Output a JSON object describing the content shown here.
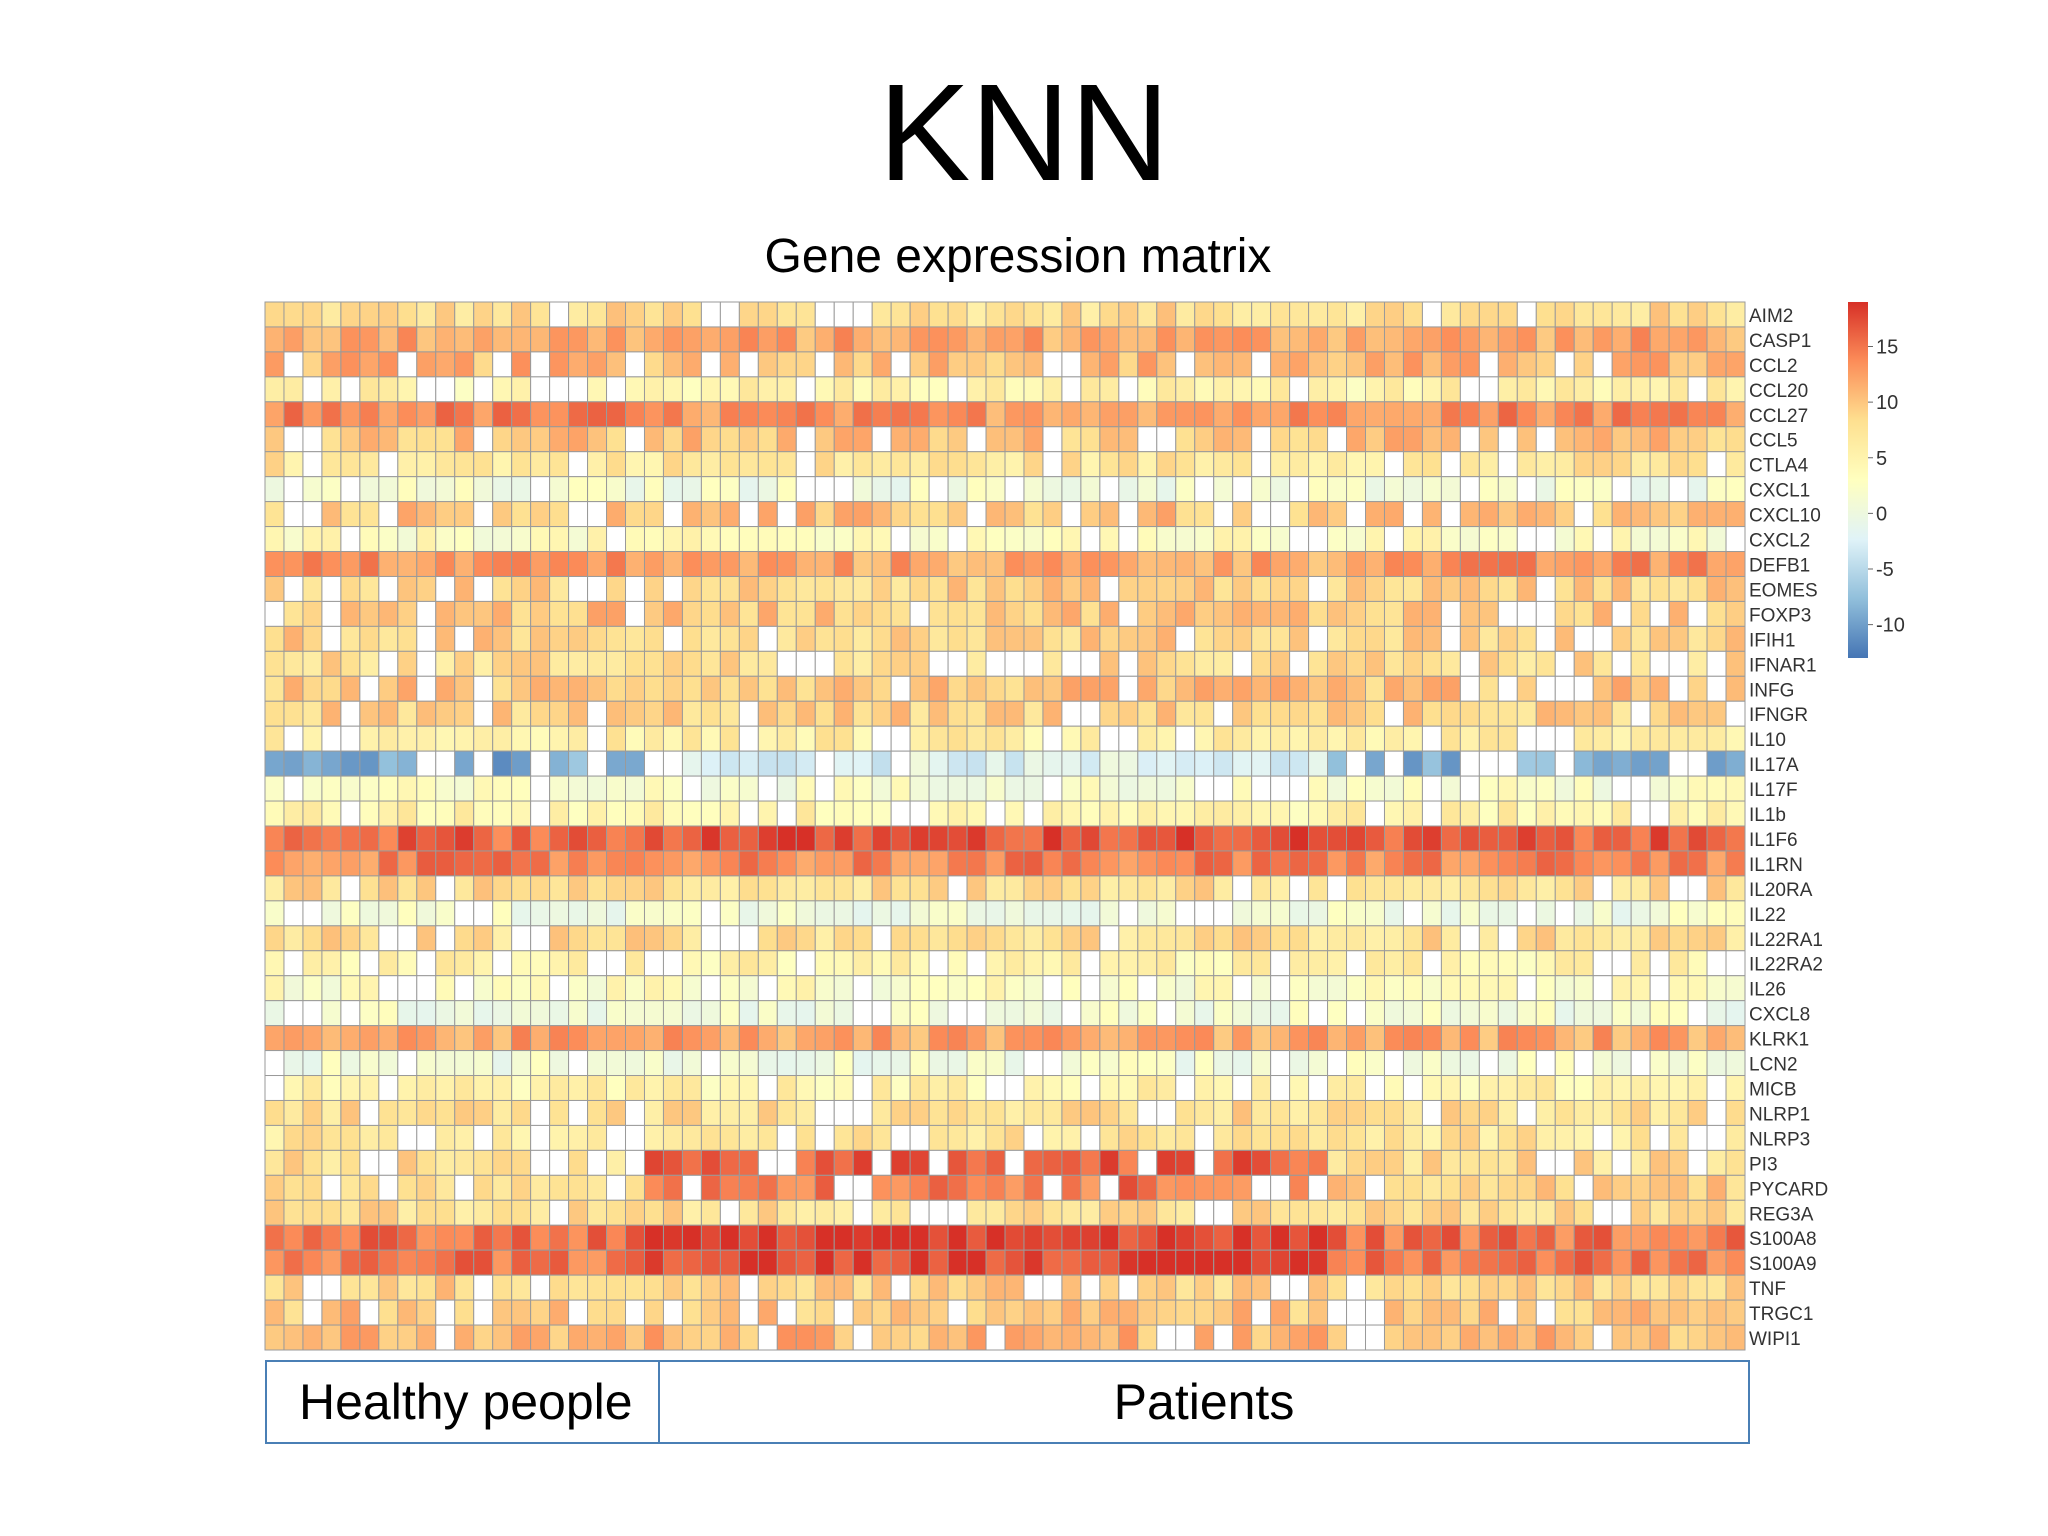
{
  "slide": {
    "title": "KNN"
  },
  "chart_data": {
    "type": "heatmap",
    "title": "Gene expression matrix",
    "rows": [
      "AIM2",
      "CASP1",
      "CCL2",
      "CCL20",
      "CCL27",
      "CCL5",
      "CTLA4",
      "CXCL1",
      "CXCL10",
      "CXCL2",
      "DEFB1",
      "EOMES",
      "FOXP3",
      "IFIH1",
      "IFNAR1",
      "INFG",
      "IFNGR",
      "IL10",
      "IL17A",
      "IL17F",
      "IL1b",
      "IL1F6",
      "IL1RN",
      "IL20RA",
      "IL22",
      "IL22RA1",
      "IL22RA2",
      "IL26",
      "CXCL8",
      "KLRK1",
      "LCN2",
      "MICB",
      "NLRP1",
      "NLRP3",
      "PI3",
      "PYCARD",
      "REG3A",
      "S100A8",
      "S100A9",
      "TNF",
      "TRGC1",
      "WIPI1"
    ],
    "columns": {
      "healthy_count": 20,
      "patient_count": 58
    },
    "row_base_values": [
      8,
      12,
      11,
      5,
      14,
      10,
      7,
      1,
      10,
      3,
      13,
      9,
      10,
      9,
      8,
      10,
      9,
      6,
      -9,
      2,
      5,
      16,
      14,
      8,
      1,
      8,
      5,
      3,
      1,
      12,
      1,
      5,
      8,
      7,
      8,
      9,
      8,
      15,
      15,
      9,
      10,
      11
    ],
    "patient_adjust": {
      "IL1F6": 17,
      "S100A8": 18,
      "S100A9": 18,
      "PI3": 16,
      "PYCARD": 15,
      "IL17A": -2,
      "CCL27": 13,
      "DEFB1": 12
    },
    "colorbar": {
      "ticks": [
        15,
        10,
        5,
        0,
        -5,
        -10
      ],
      "range": [
        -13,
        19
      ],
      "colors": [
        "#4575b4",
        "#91bfdb",
        "#e0f3f8",
        "#ffffbf",
        "#fee090",
        "#fc8d59",
        "#d73027"
      ]
    },
    "groups": [
      "Healthy people",
      "Patients"
    ]
  }
}
